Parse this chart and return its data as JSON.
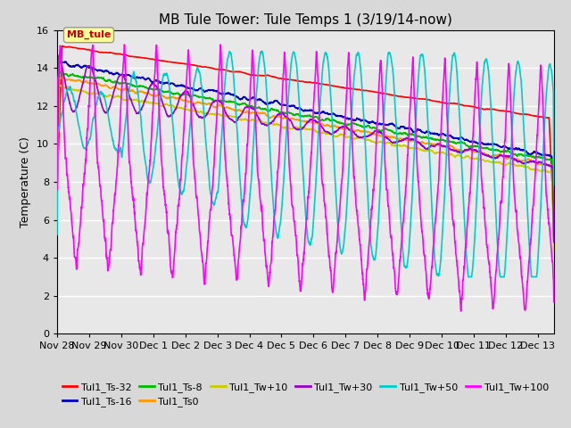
{
  "title": "MB Tule Tower: Tule Temps 1 (3/19/14-now)",
  "ylabel": "Temperature (C)",
  "ylim": [
    0,
    16
  ],
  "yticks": [
    0,
    2,
    4,
    6,
    8,
    10,
    12,
    14,
    16
  ],
  "x_tick_labels": [
    "Nov 28",
    "Nov 29",
    "Nov 30",
    "Dec 1",
    "Dec 2",
    "Dec 3",
    "Dec 4",
    "Dec 5",
    "Dec 6",
    "Dec 7",
    "Dec 8",
    "Dec 9",
    "Dec 10",
    "Dec 11",
    "Dec 12",
    "Dec 13"
  ],
  "x_tick_positions": [
    0,
    1,
    2,
    3,
    4,
    5,
    6,
    7,
    8,
    9,
    10,
    11,
    12,
    13,
    14,
    15
  ],
  "legend_entries": [
    "Tul1_Ts-32",
    "Tul1_Ts-16",
    "Tul1_Ts-8",
    "Tul1_Ts0",
    "Tul1_Tw+10",
    "Tul1_Tw+30",
    "Tul1_Tw+50",
    "Tul1_Tw+100"
  ],
  "legend_colors": [
    "#ff0000",
    "#0000bb",
    "#00bb00",
    "#ff9900",
    "#cccc00",
    "#9900cc",
    "#00cccc",
    "#ff00ff"
  ],
  "label_box_text": "MB_tule",
  "label_box_color": "#ffff99",
  "label_box_text_color": "#cc0000",
  "background_color": "#d8d8d8",
  "plot_bg_color": "#e8e8e8",
  "grid_color": "#ffffff",
  "title_fontsize": 11,
  "axis_fontsize": 9,
  "tick_fontsize": 8
}
